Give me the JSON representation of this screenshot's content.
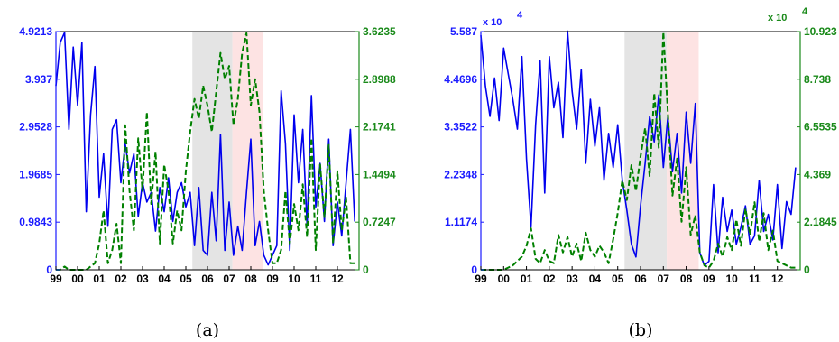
{
  "colors": {
    "left_series": "#0000ee",
    "right_series": "#008000",
    "left_axis": "#1a1aff",
    "right_axis": "#1a8a1a",
    "shade_gray": "#e4e4e4",
    "shade_pink": "#fde3e3"
  },
  "chart_data": [
    {
      "type": "line",
      "caption": "(a)",
      "x_tick_labels": [
        "99",
        "00",
        "01",
        "02",
        "03",
        "04",
        "05",
        "06",
        "07",
        "08",
        "09",
        "10",
        "11",
        "12"
      ],
      "xlim": [
        1999,
        2013
      ],
      "y_left": {
        "ticks": [
          "0",
          "0.9843",
          "1.9685",
          "2.9528",
          "3.937",
          "4.9213"
        ],
        "ylim": [
          0,
          4.9213
        ],
        "multiplier": ""
      },
      "y_right": {
        "ticks": [
          "0",
          "0.7247",
          "1.4494",
          "2.1741",
          "2.8988",
          "3.6235"
        ],
        "ylim": [
          0,
          3.6235
        ],
        "multiplier": ""
      },
      "shaded_regions": [
        {
          "from": 2005.3,
          "to": 2007.15,
          "color": "gray"
        },
        {
          "from": 2007.15,
          "to": 2008.55,
          "color": "pink"
        }
      ],
      "series": [
        {
          "axis": "left",
          "style": "solid",
          "x": [
            1999.0,
            1999.2,
            1999.4,
            1999.6,
            1999.8,
            2000.0,
            2000.2,
            2000.4,
            2000.6,
            2000.8,
            2001.0,
            2001.2,
            2001.4,
            2001.6,
            2001.8,
            2002.0,
            2002.2,
            2002.4,
            2002.6,
            2002.8,
            2003.0,
            2003.2,
            2003.4,
            2003.6,
            2003.8,
            2004.0,
            2004.2,
            2004.4,
            2004.6,
            2004.8,
            2005.0,
            2005.2,
            2005.4,
            2005.6,
            2005.8,
            2006.0,
            2006.2,
            2006.4,
            2006.6,
            2006.8,
            2007.0,
            2007.2,
            2007.4,
            2007.6,
            2007.8,
            2008.0,
            2008.2,
            2008.4,
            2008.6,
            2008.8,
            2009.0,
            2009.2,
            2009.4,
            2009.6,
            2009.8,
            2010.0,
            2010.2,
            2010.4,
            2010.6,
            2010.8,
            2011.0,
            2011.2,
            2011.4,
            2011.6,
            2011.8,
            2012.0,
            2012.2,
            2012.4,
            2012.6,
            2012.8
          ],
          "values": [
            3.8,
            4.7,
            4.9,
            2.9,
            4.6,
            3.4,
            4.7,
            1.2,
            3.2,
            4.2,
            1.5,
            2.4,
            0.9,
            2.9,
            3.1,
            1.8,
            2.6,
            2.0,
            2.4,
            1.1,
            1.8,
            1.4,
            1.6,
            0.8,
            1.7,
            1.2,
            1.9,
            1.0,
            1.6,
            1.8,
            1.3,
            1.6,
            0.5,
            1.7,
            0.4,
            0.3,
            1.6,
            0.6,
            2.8,
            0.4,
            1.4,
            0.3,
            0.9,
            0.4,
            1.6,
            2.7,
            0.5,
            1.0,
            0.3,
            0.1,
            0.3,
            0.5,
            3.7,
            2.6,
            0.4,
            3.2,
            1.8,
            2.9,
            0.9,
            3.6,
            1.3,
            2.2,
            1.0,
            2.7,
            0.5,
            1.4,
            0.7,
            1.8,
            2.9,
            1.0
          ]
        },
        {
          "axis": "right",
          "style": "dashed",
          "x": [
            1999.0,
            1999.2,
            1999.4,
            1999.6,
            1999.8,
            2000.0,
            2000.2,
            2000.4,
            2000.6,
            2000.8,
            2001.0,
            2001.2,
            2001.4,
            2001.6,
            2001.8,
            2002.0,
            2002.2,
            2002.4,
            2002.6,
            2002.8,
            2003.0,
            2003.2,
            2003.4,
            2003.6,
            2003.8,
            2004.0,
            2004.2,
            2004.4,
            2004.6,
            2004.8,
            2005.0,
            2005.2,
            2005.4,
            2005.6,
            2005.8,
            2006.0,
            2006.2,
            2006.4,
            2006.6,
            2006.8,
            2007.0,
            2007.2,
            2007.4,
            2007.6,
            2007.8,
            2008.0,
            2008.2,
            2008.4,
            2008.6,
            2008.8,
            2009.0,
            2009.2,
            2009.4,
            2009.6,
            2009.8,
            2010.0,
            2010.2,
            2010.4,
            2010.6,
            2010.8,
            2011.0,
            2011.2,
            2011.4,
            2011.6,
            2011.8,
            2012.0,
            2012.2,
            2012.4,
            2012.6,
            2012.8
          ],
          "values": [
            0,
            0,
            0.05,
            0,
            0,
            0,
            0,
            0,
            0.05,
            0.1,
            0.4,
            0.9,
            0.1,
            0.3,
            0.7,
            0.1,
            2.2,
            1.2,
            0.6,
            2.0,
            1.2,
            2.4,
            1.0,
            1.8,
            0.4,
            1.6,
            1.2,
            0.4,
            0.9,
            0.6,
            1.5,
            2.1,
            2.6,
            2.3,
            2.8,
            2.5,
            2.1,
            2.7,
            3.3,
            2.9,
            3.1,
            2.2,
            2.6,
            3.3,
            3.6,
            2.5,
            2.9,
            2.4,
            1.2,
            0.6,
            0.1,
            0.1,
            0.3,
            1.2,
            0.4,
            1.0,
            0.6,
            1.3,
            0.5,
            2.0,
            0.3,
            1.6,
            0.8,
            1.9,
            0.4,
            1.5,
            0.6,
            1.1,
            0.1,
            0.1
          ]
        }
      ]
    },
    {
      "type": "line",
      "caption": "(b)",
      "x_tick_labels": [
        "99",
        "00",
        "01",
        "02",
        "03",
        "04",
        "05",
        "06",
        "07",
        "08",
        "09",
        "10",
        "11",
        "12"
      ],
      "xlim": [
        1999,
        2013
      ],
      "y_left": {
        "ticks": [
          "0",
          "1.1174",
          "2.2348",
          "3.3522",
          "4.4696",
          "5.587"
        ],
        "ylim": [
          0,
          5.587
        ],
        "multiplier": "x 10",
        "multiplier_exp": "4"
      },
      "y_right": {
        "ticks": [
          "0",
          "2.1845",
          "4.369",
          "6.5535",
          "8.738",
          "10.923"
        ],
        "ylim": [
          0,
          10.923
        ],
        "multiplier": "x 10",
        "multiplier_exp": "4"
      },
      "shaded_regions": [
        {
          "from": 2005.3,
          "to": 2007.15,
          "color": "gray"
        },
        {
          "from": 2007.15,
          "to": 2008.55,
          "color": "pink"
        }
      ],
      "series": [
        {
          "axis": "left",
          "style": "solid",
          "x": [
            1999.0,
            1999.2,
            1999.4,
            1999.6,
            1999.8,
            2000.0,
            2000.2,
            2000.4,
            2000.6,
            2000.8,
            2001.0,
            2001.2,
            2001.4,
            2001.6,
            2001.8,
            2002.0,
            2002.2,
            2002.4,
            2002.6,
            2002.8,
            2003.0,
            2003.2,
            2003.4,
            2003.6,
            2003.8,
            2004.0,
            2004.2,
            2004.4,
            2004.6,
            2004.8,
            2005.0,
            2005.2,
            2005.4,
            2005.6,
            2005.8,
            2006.0,
            2006.2,
            2006.4,
            2006.6,
            2006.8,
            2007.0,
            2007.2,
            2007.4,
            2007.6,
            2007.8,
            2008.0,
            2008.2,
            2008.4,
            2008.6,
            2008.8,
            2009.0,
            2009.2,
            2009.4,
            2009.6,
            2009.8,
            2010.0,
            2010.2,
            2010.4,
            2010.6,
            2010.8,
            2011.0,
            2011.2,
            2011.4,
            2011.6,
            2011.8,
            2012.0,
            2012.2,
            2012.4,
            2012.6,
            2012.8
          ],
          "values": [
            5.5,
            4.3,
            3.6,
            4.5,
            3.5,
            5.2,
            4.6,
            4.0,
            3.3,
            5.0,
            2.6,
            1.0,
            3.4,
            4.9,
            1.8,
            5.0,
            3.8,
            4.4,
            3.1,
            5.6,
            4.2,
            3.3,
            4.7,
            2.5,
            4.0,
            2.9,
            3.8,
            2.1,
            3.2,
            2.4,
            3.4,
            2.1,
            1.4,
            0.6,
            0.3,
            1.5,
            2.5,
            3.6,
            3.0,
            4.1,
            2.4,
            3.6,
            2.3,
            3.2,
            1.8,
            3.7,
            2.5,
            3.9,
            0.4,
            0.1,
            0.2,
            2.0,
            0.4,
            1.7,
            0.9,
            1.4,
            0.6,
            1.0,
            1.5,
            0.6,
            0.8,
            2.1,
            0.9,
            1.3,
            0.7,
            2.0,
            0.5,
            1.6,
            1.3,
            2.4
          ]
        },
        {
          "axis": "right",
          "style": "dashed",
          "x": [
            1999.0,
            1999.2,
            1999.4,
            1999.6,
            1999.8,
            2000.0,
            2000.2,
            2000.4,
            2000.6,
            2000.8,
            2001.0,
            2001.2,
            2001.4,
            2001.6,
            2001.8,
            2002.0,
            2002.2,
            2002.4,
            2002.6,
            2002.8,
            2003.0,
            2003.2,
            2003.4,
            2003.6,
            2003.8,
            2004.0,
            2004.2,
            2004.4,
            2004.6,
            2004.8,
            2005.0,
            2005.2,
            2005.4,
            2005.6,
            2005.8,
            2006.0,
            2006.2,
            2006.4,
            2006.6,
            2006.8,
            2007.0,
            2007.2,
            2007.4,
            2007.6,
            2007.8,
            2008.0,
            2008.2,
            2008.4,
            2008.6,
            2008.8,
            2009.0,
            2009.2,
            2009.4,
            2009.6,
            2009.8,
            2010.0,
            2010.2,
            2010.4,
            2010.6,
            2010.8,
            2011.0,
            2011.2,
            2011.4,
            2011.6,
            2011.8,
            2012.0,
            2012.2,
            2012.4,
            2012.6,
            2012.8
          ],
          "values": [
            0,
            0,
            0,
            0,
            0,
            0,
            0.1,
            0.2,
            0.4,
            0.6,
            1.1,
            1.9,
            0.5,
            0.3,
            0.9,
            0.4,
            0.3,
            1.6,
            0.8,
            1.5,
            0.6,
            1.2,
            0.4,
            1.7,
            0.9,
            0.6,
            1.1,
            0.8,
            0.3,
            1.4,
            2.6,
            4.1,
            3.2,
            4.8,
            3.6,
            5.2,
            6.5,
            4.3,
            8.1,
            5.6,
            10.9,
            7.2,
            3.4,
            5.1,
            2.2,
            4.7,
            1.6,
            2.5,
            0.8,
            0.2,
            0.1,
            0.4,
            1.2,
            0.6,
            1.5,
            0.9,
            2.3,
            1.1,
            2.8,
            1.6,
            3.1,
            1.3,
            2.6,
            0.9,
            1.8,
            0.4,
            0.3,
            0.2,
            0.1,
            0.1
          ]
        }
      ]
    }
  ]
}
